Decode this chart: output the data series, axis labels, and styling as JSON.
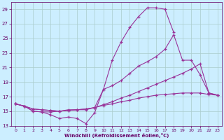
{
  "background_color": "#cceeff",
  "grid_color": "#aacccc",
  "line_color": "#993399",
  "xlim": [
    -0.5,
    23.5
  ],
  "ylim": [
    13,
    30
  ],
  "yticks": [
    13,
    15,
    17,
    19,
    21,
    23,
    25,
    27,
    29
  ],
  "xticks": [
    0,
    1,
    2,
    3,
    4,
    5,
    6,
    7,
    8,
    9,
    10,
    11,
    12,
    13,
    14,
    15,
    16,
    17,
    18,
    19,
    20,
    21,
    22,
    23
  ],
  "xlabel": "Windchill (Refroidissement éolien,°C)",
  "c1x": [
    0,
    1,
    2,
    3,
    4,
    5,
    6,
    7,
    8,
    9,
    10,
    11,
    12,
    13,
    14,
    15,
    16,
    17,
    18
  ],
  "c1y": [
    16.0,
    15.7,
    15.0,
    14.9,
    14.5,
    14.0,
    14.2,
    14.0,
    13.3,
    14.8,
    18.0,
    22.0,
    24.5,
    26.5,
    28.0,
    29.2,
    29.2,
    29.0,
    25.8
  ],
  "c2x": [
    0,
    1,
    2,
    3,
    4,
    5,
    6,
    7,
    8,
    9,
    10,
    11,
    12,
    13,
    14,
    15,
    16,
    17,
    18,
    19,
    20,
    21,
    22,
    23
  ],
  "c2y": [
    16.0,
    15.7,
    15.0,
    14.9,
    14.9,
    15.0,
    15.2,
    15.2,
    15.2,
    15.5,
    18.0,
    18.5,
    19.2,
    20.2,
    21.2,
    21.8,
    22.5,
    23.5,
    25.5,
    22.0,
    22.0,
    20.0,
    17.5,
    17.2
  ],
  "c3x": [
    0,
    1,
    2,
    3,
    4,
    5,
    6,
    7,
    8,
    9,
    10,
    11,
    12,
    13,
    14,
    15,
    16,
    17,
    18,
    19,
    20,
    21,
    22,
    23
  ],
  "c3y": [
    16.0,
    15.7,
    15.3,
    15.2,
    15.1,
    15.0,
    15.1,
    15.2,
    15.3,
    15.5,
    15.9,
    16.3,
    16.8,
    17.2,
    17.7,
    18.2,
    18.7,
    19.2,
    19.7,
    20.2,
    20.8,
    21.5,
    17.5,
    17.2
  ],
  "c4x": [
    0,
    1,
    2,
    3,
    4,
    5,
    6,
    7,
    8,
    9,
    10,
    11,
    12,
    13,
    14,
    15,
    16,
    17,
    18,
    19,
    20,
    21,
    22,
    23
  ],
  "c4y": [
    16.0,
    15.7,
    15.3,
    15.2,
    15.1,
    15.0,
    15.1,
    15.2,
    15.3,
    15.5,
    15.8,
    16.0,
    16.3,
    16.5,
    16.8,
    17.0,
    17.2,
    17.3,
    17.4,
    17.5,
    17.5,
    17.5,
    17.3,
    17.2
  ]
}
